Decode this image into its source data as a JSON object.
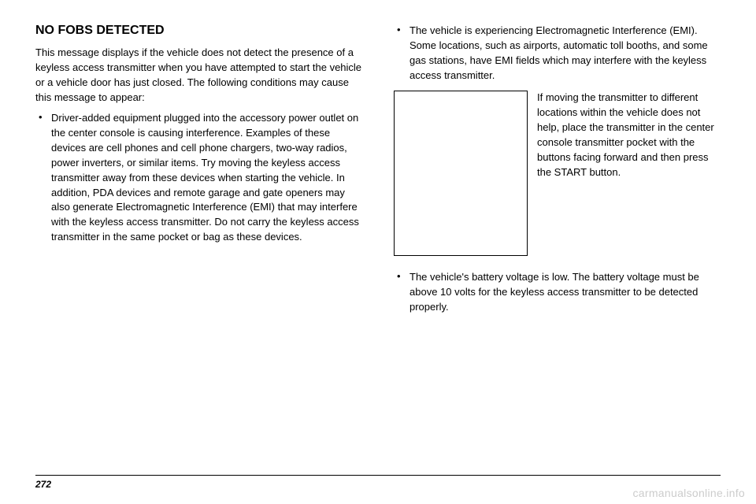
{
  "heading": "NO FOBS DETECTED",
  "intro": "This message displays if the vehicle does not detect the presence of a keyless access transmitter when you have attempted to start the vehicle or a vehicle door has just closed. The following conditions may cause this message to appear:",
  "left_bullet": "Driver-added equipment plugged into the accessory power outlet on the center console is causing interference. Examples of these devices are cell phones and cell phone chargers, two-way radios, power inverters, or similar items. Try moving the keyless access transmitter away from these devices when starting the vehicle. In addition, PDA devices and remote garage and gate openers may also generate Electromagnetic Interference (EMI) that may interfere with the keyless access transmitter. Do not carry the keyless access transmitter in the same pocket or bag as these devices.",
  "right_bullet_1": "The vehicle is experiencing Electromagnetic Interference (EMI). Some locations, such as airports, automatic toll booths, and some gas stations, have EMI fields which may interfere with the keyless access transmitter.",
  "caption": "If moving the transmitter to different locations within the vehicle does not help, place the transmitter in the center console transmitter pocket with the buttons facing forward and then press the START button.",
  "right_bullet_2": "The vehicle's battery voltage is low. The battery voltage must be above 10 volts for the keyless access transmitter to be detected properly.",
  "page_number": "272",
  "watermark": "carmanualsonline.info",
  "bullet_char": "•"
}
